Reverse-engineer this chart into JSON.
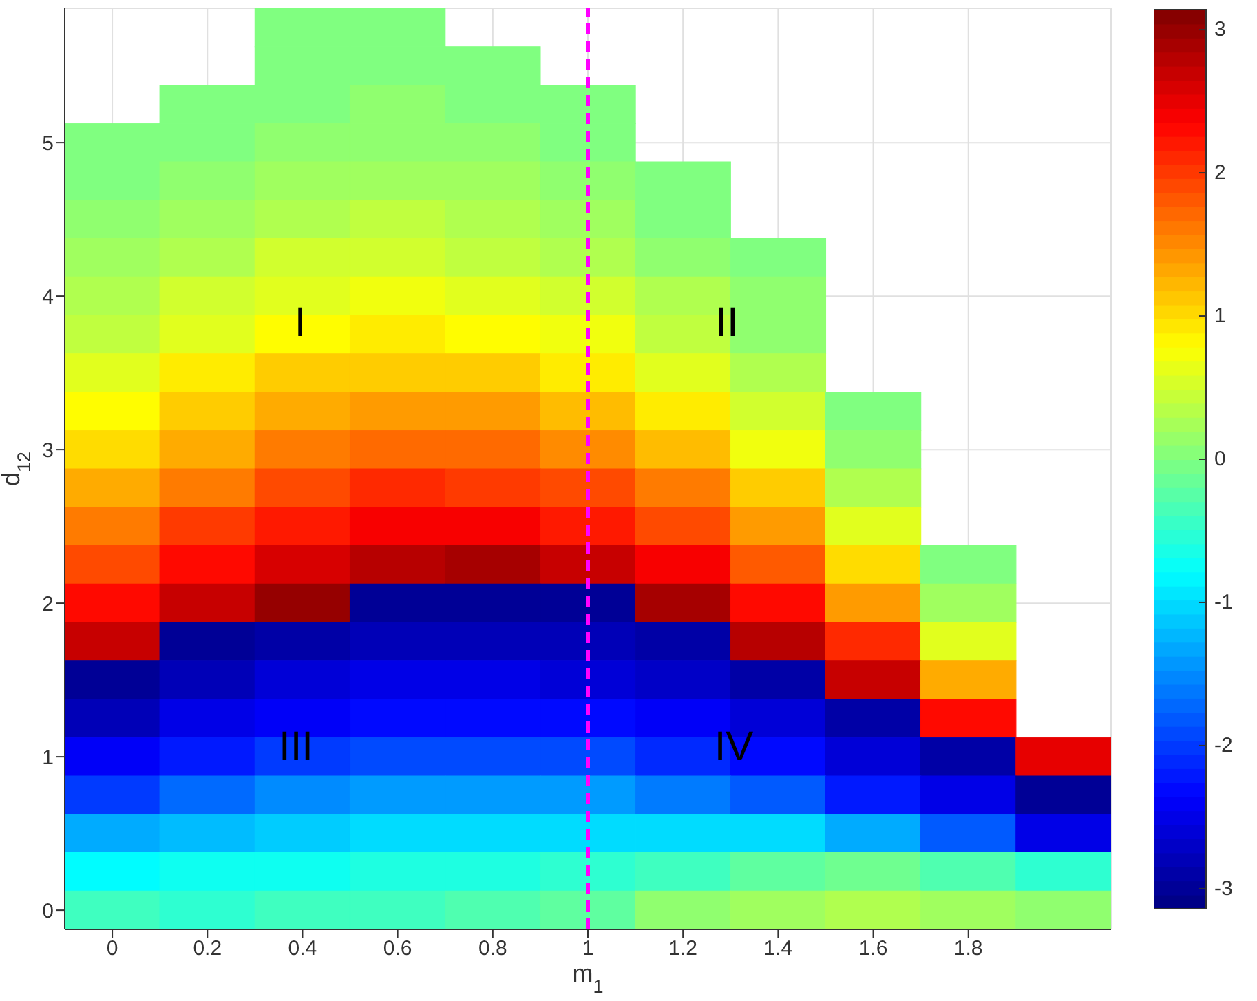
{
  "chart_data": {
    "type": "heatmap",
    "xlabel": "m$_{1}$",
    "ylabel": "d$_{12}$",
    "categories": [
      "0",
      "0.2",
      "0.4",
      "0.6",
      "0.8",
      "1",
      "1.2",
      "1.4",
      "1.6",
      "1.8",
      null
    ],
    "y_categories": [
      null,
      null,
      null,
      "5",
      null,
      null,
      null,
      "4",
      null,
      null,
      null,
      "3",
      null,
      null,
      null,
      "2",
      null,
      null,
      null,
      "1",
      null,
      null,
      null,
      "0"
    ],
    "clim": [
      -3.14,
      3.14
    ],
    "cticks": [
      -3,
      -2,
      -1,
      0,
      1,
      2,
      3
    ],
    "grid": true,
    "cells": [
      [
        null,
        null,
        0.0,
        0.0,
        null,
        null,
        null,
        null,
        null,
        null,
        null
      ],
      [
        null,
        null,
        0.0,
        0.0,
        0.0,
        null,
        null,
        null,
        null,
        null,
        null
      ],
      [
        null,
        0.0,
        0.0,
        0.1,
        0.0,
        0.0,
        null,
        null,
        null,
        null,
        null
      ],
      [
        0.0,
        0.0,
        0.1,
        0.1,
        0.1,
        0.0,
        null,
        null,
        null,
        null,
        null
      ],
      [
        0.0,
        0.1,
        0.2,
        0.2,
        0.2,
        0.1,
        0.0,
        null,
        null,
        null,
        null
      ],
      [
        0.1,
        0.2,
        0.3,
        0.4,
        0.3,
        0.2,
        0.0,
        null,
        null,
        null,
        null
      ],
      [
        0.2,
        0.3,
        0.5,
        0.5,
        0.4,
        0.3,
        0.1,
        0.0,
        null,
        null,
        null
      ],
      [
        0.3,
        0.5,
        0.6,
        0.7,
        0.6,
        0.5,
        0.3,
        0.1,
        null,
        null,
        null
      ],
      [
        0.4,
        0.6,
        0.8,
        0.9,
        0.8,
        0.7,
        0.4,
        0.1,
        null,
        null,
        null
      ],
      [
        0.6,
        0.9,
        1.1,
        1.1,
        1.1,
        0.9,
        0.6,
        0.3,
        null,
        null,
        null
      ],
      [
        0.8,
        1.1,
        1.3,
        1.4,
        1.4,
        1.2,
        0.9,
        0.5,
        0.0,
        null,
        null
      ],
      [
        1.0,
        1.3,
        1.6,
        1.7,
        1.7,
        1.5,
        1.2,
        0.7,
        0.1,
        null,
        null
      ],
      [
        1.3,
        1.6,
        1.9,
        2.1,
        2.0,
        1.9,
        1.6,
        1.1,
        0.3,
        null,
        null
      ],
      [
        1.6,
        2.0,
        2.2,
        2.4,
        2.4,
        2.2,
        1.9,
        1.4,
        0.6,
        null,
        null
      ],
      [
        1.9,
        2.3,
        2.6,
        2.8,
        2.9,
        2.7,
        2.4,
        1.8,
        1.0,
        0.0,
        null
      ],
      [
        2.3,
        2.7,
        3.0,
        -3.0,
        -3.0,
        -3.0,
        2.9,
        2.3,
        1.4,
        0.2,
        null
      ],
      [
        2.7,
        -3.0,
        -2.9,
        -2.8,
        -2.8,
        -2.8,
        -2.9,
        2.8,
        2.1,
        0.6,
        null
      ],
      [
        -3.0,
        -2.8,
        -2.6,
        -2.5,
        -2.5,
        -2.6,
        -2.7,
        -2.9,
        2.7,
        1.3,
        null
      ],
      [
        -2.8,
        -2.5,
        -2.4,
        -2.3,
        -2.3,
        -2.3,
        -2.4,
        -2.6,
        -2.9,
        2.3,
        null
      ],
      [
        -2.4,
        -2.2,
        -2.0,
        -1.9,
        -1.9,
        -1.9,
        -2.1,
        -2.3,
        -2.6,
        -2.9,
        2.5
      ],
      [
        -2.0,
        -1.7,
        -1.5,
        -1.4,
        -1.4,
        -1.4,
        -1.6,
        -1.8,
        -2.2,
        -2.5,
        -3.0
      ],
      [
        -1.3,
        -1.2,
        -1.1,
        -1.0,
        -1.0,
        -1.0,
        -1.0,
        -1.0,
        -1.3,
        -1.8,
        -2.5
      ],
      [
        -0.8,
        -0.7,
        -0.7,
        -0.6,
        -0.6,
        -0.5,
        -0.4,
        -0.2,
        -0.1,
        -0.3,
        -0.5
      ],
      [
        -0.4,
        -0.5,
        -0.4,
        -0.4,
        -0.3,
        -0.2,
        0.1,
        0.2,
        0.3,
        0.2,
        0.1
      ]
    ],
    "ref_lines": [
      {
        "axis": "x",
        "value": "1",
        "color": "#ff00ff",
        "line_style": "dashed"
      }
    ],
    "annotations": [
      "I",
      "II",
      "III",
      "IV"
    ]
  }
}
